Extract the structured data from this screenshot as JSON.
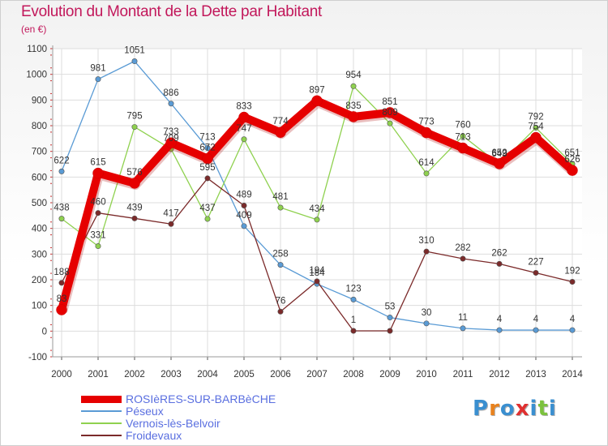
{
  "title": "Evolution du Montant de la Dette par Habitant",
  "subtitle": "(en €)",
  "logo": {
    "text": "Proxiti",
    "letter_colors": [
      "#3a8fd0",
      "#e8821e",
      "#3a8fd0",
      "#e03030",
      "#3a8fd0",
      "#7cc23d",
      "#3a8fd0"
    ]
  },
  "chart_data": {
    "type": "line",
    "title": "Evolution du Montant de la Dette par Habitant",
    "subtitle": "(en €)",
    "x": [
      "2000",
      "2001",
      "2002",
      "2003",
      "2004",
      "2005",
      "2006",
      "2007",
      "2008",
      "2009",
      "2010",
      "2011",
      "2012",
      "2013",
      "2014"
    ],
    "ylim": [
      -100,
      1100
    ],
    "yticks": [
      "-100",
      "0",
      "100",
      "200",
      "300",
      "400",
      "500",
      "600",
      "700",
      "800",
      "900",
      "1000",
      "1100"
    ],
    "grid": true,
    "legend_position": "bottom-left",
    "series": [
      {
        "name": "ROSIèRES-SUR-BARBèCHE",
        "color": "#e60000",
        "values": [
          83,
          615,
          576,
          733,
          672,
          833,
          774,
          897,
          835,
          851,
          773,
          713,
          652,
          754,
          626
        ],
        "labels": [
          "83",
          "615",
          "576",
          "733",
          "672",
          "833",
          "774",
          "897",
          "835",
          "851",
          "773",
          "713",
          "652",
          "754",
          "626"
        ]
      },
      {
        "name": "Péseux",
        "color": "#5a9bd5",
        "values": [
          622,
          981,
          1051,
          886,
          713,
          409,
          258,
          184,
          123,
          53,
          30,
          11,
          4,
          4,
          4
        ],
        "labels": [
          "622",
          "981",
          "1051",
          "886",
          "713",
          "409",
          "258",
          "184",
          "123",
          "53",
          "30",
          "11",
          "4",
          "4",
          "4"
        ]
      },
      {
        "name": "Vernois-lès-Belvoir",
        "color": "#8fd14f",
        "values": [
          438,
          331,
          795,
          709,
          437,
          747,
          481,
          434,
          954,
          809,
          614,
          760,
          649,
          792,
          651
        ],
        "labels": [
          "438",
          "331",
          "795",
          "709",
          "437",
          "747",
          "481",
          "434",
          "954",
          "809",
          "614",
          "760",
          "649",
          "792",
          "651"
        ]
      },
      {
        "name": "Froidevaux",
        "color": "#7b2a2a",
        "values": [
          188,
          460,
          439,
          417,
          595,
          489,
          76,
          194,
          1,
          1,
          310,
          282,
          262,
          227,
          192
        ],
        "labels": [
          "188",
          "460",
          "439",
          "417",
          "595",
          "489",
          "76",
          "194",
          "1",
          "",
          "310",
          "282",
          "262",
          "227",
          "192"
        ]
      }
    ]
  }
}
